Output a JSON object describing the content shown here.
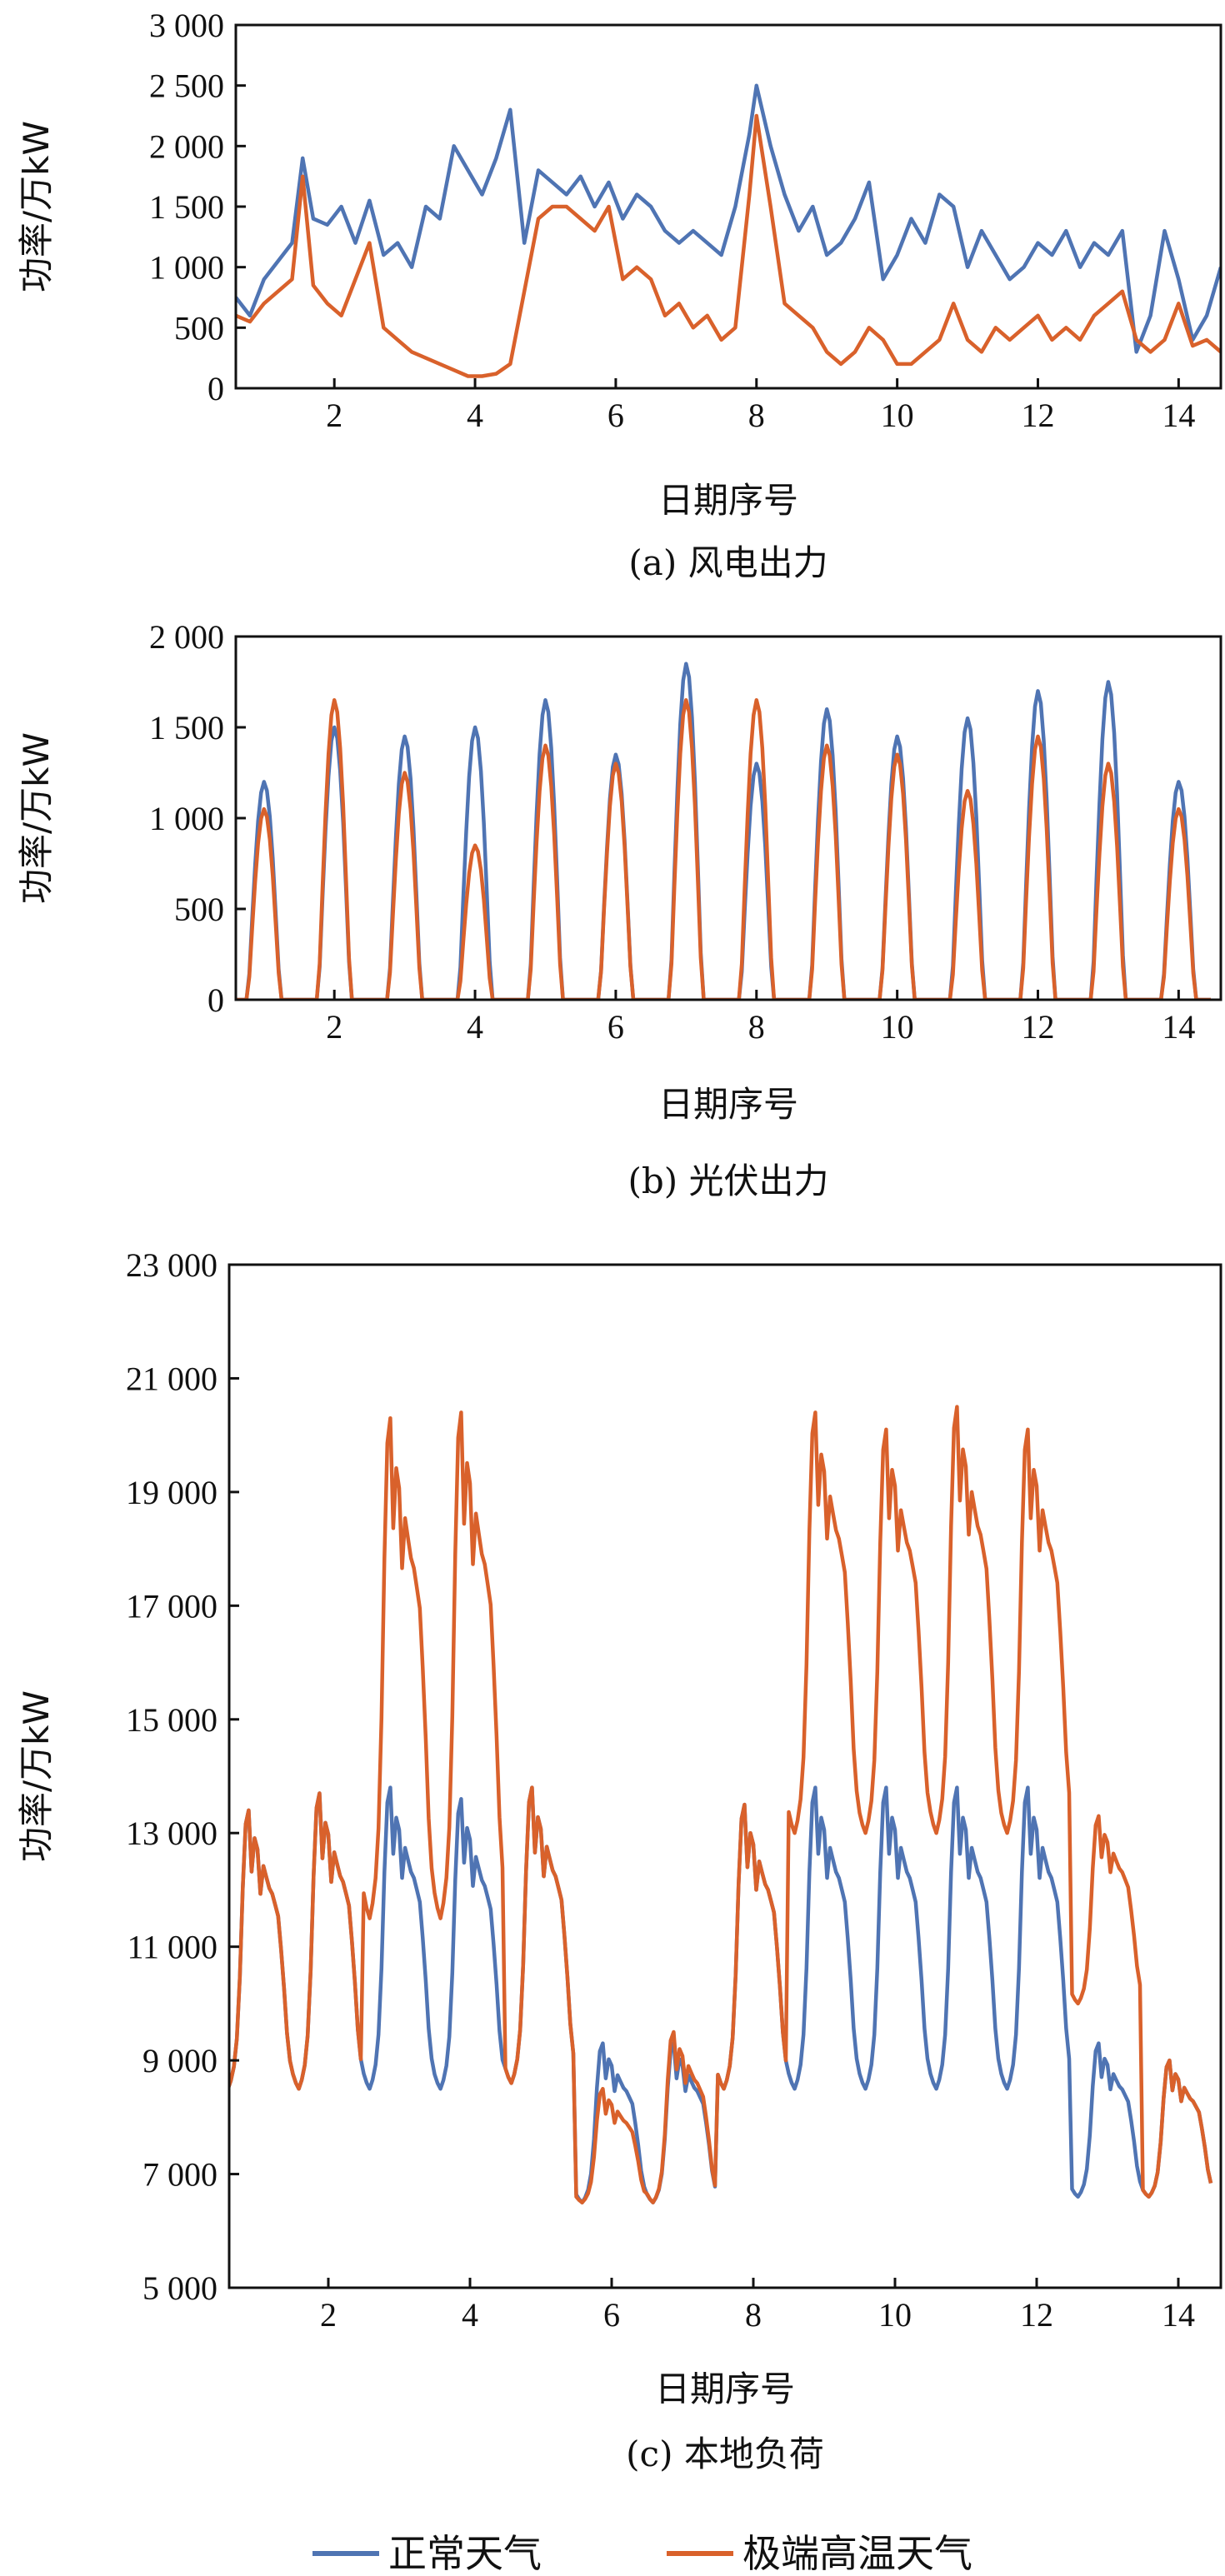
{
  "colors": {
    "normal": "#4f74b3",
    "extreme": "#d9612b",
    "axis": "#111111"
  },
  "legend": [
    {
      "label": "正常天气",
      "color": "#4f74b3"
    },
    {
      "label": "极端高温天气",
      "color": "#d9612b"
    }
  ],
  "chart_data": [
    {
      "type": "line",
      "caption": "(a) 风电出力",
      "xlabel": "日期序号",
      "ylabel": "功率/万kW",
      "xlim": [
        0.6,
        14.6
      ],
      "ylim": [
        0,
        3000
      ],
      "xticks": [
        2,
        4,
        6,
        8,
        10,
        12,
        14
      ],
      "yticks": [
        0,
        500,
        1000,
        1500,
        2000,
        2500,
        3000
      ],
      "ytick_labels": [
        "0",
        "500",
        "1 000",
        "1 500",
        "2 000",
        "2 500",
        "3 000"
      ],
      "series": [
        {
          "name": "正常天气",
          "x": [
            0.6,
            0.8,
            1.0,
            1.2,
            1.4,
            1.55,
            1.7,
            1.9,
            2.1,
            2.3,
            2.5,
            2.7,
            2.9,
            3.1,
            3.3,
            3.5,
            3.7,
            3.9,
            4.1,
            4.3,
            4.5,
            4.7,
            4.9,
            5.1,
            5.3,
            5.5,
            5.7,
            5.9,
            6.1,
            6.3,
            6.5,
            6.7,
            6.9,
            7.1,
            7.3,
            7.5,
            7.7,
            7.9,
            8.0,
            8.2,
            8.4,
            8.6,
            8.8,
            9.0,
            9.2,
            9.4,
            9.6,
            9.8,
            10.0,
            10.2,
            10.4,
            10.6,
            10.8,
            11.0,
            11.2,
            11.4,
            11.6,
            11.8,
            12.0,
            12.2,
            12.4,
            12.6,
            12.8,
            13.0,
            13.2,
            13.4,
            13.6,
            13.8,
            14.0,
            14.2,
            14.4,
            14.6
          ],
          "y": [
            750,
            600,
            900,
            1050,
            1200,
            1900,
            1400,
            1350,
            1500,
            1200,
            1550,
            1100,
            1200,
            1000,
            1500,
            1400,
            2000,
            1800,
            1600,
            1900,
            2300,
            1200,
            1800,
            1700,
            1600,
            1750,
            1500,
            1700,
            1400,
            1600,
            1500,
            1300,
            1200,
            1300,
            1200,
            1100,
            1500,
            2100,
            2500,
            2000,
            1600,
            1300,
            1500,
            1100,
            1200,
            1400,
            1700,
            900,
            1100,
            1400,
            1200,
            1600,
            1500,
            1000,
            1300,
            1100,
            900,
            1000,
            1200,
            1100,
            1300,
            1000,
            1200,
            1100,
            1300,
            300,
            600,
            1300,
            900,
            400,
            600,
            1000
          ]
        },
        {
          "name": "极端高温天气",
          "x": [
            0.6,
            0.8,
            1.0,
            1.2,
            1.4,
            1.55,
            1.7,
            1.9,
            2.1,
            2.3,
            2.5,
            2.7,
            2.9,
            3.1,
            3.3,
            3.5,
            3.7,
            3.9,
            4.1,
            4.3,
            4.5,
            4.7,
            4.9,
            5.1,
            5.3,
            5.5,
            5.7,
            5.9,
            6.1,
            6.3,
            6.5,
            6.7,
            6.9,
            7.1,
            7.3,
            7.5,
            7.7,
            7.9,
            8.0,
            8.2,
            8.4,
            8.6,
            8.8,
            9.0,
            9.2,
            9.4,
            9.6,
            9.8,
            10.0,
            10.2,
            10.4,
            10.6,
            10.8,
            11.0,
            11.2,
            11.4,
            11.6,
            11.8,
            12.0,
            12.2,
            12.4,
            12.6,
            12.8,
            13.0,
            13.2,
            13.4,
            13.6,
            13.8,
            14.0,
            14.2,
            14.4,
            14.6
          ],
          "y": [
            600,
            550,
            700,
            800,
            900,
            1750,
            850,
            700,
            600,
            900,
            1200,
            500,
            400,
            300,
            250,
            200,
            150,
            100,
            100,
            120,
            200,
            800,
            1400,
            1500,
            1500,
            1400,
            1300,
            1500,
            900,
            1000,
            900,
            600,
            700,
            500,
            600,
            400,
            500,
            1600,
            2250,
            1500,
            700,
            600,
            500,
            300,
            200,
            300,
            500,
            400,
            200,
            200,
            300,
            400,
            700,
            400,
            300,
            500,
            400,
            500,
            600,
            400,
            500,
            400,
            600,
            700,
            800,
            400,
            300,
            400,
            700,
            350,
            400,
            300
          ]
        }
      ]
    },
    {
      "type": "line",
      "caption": "(b) 光伏出力",
      "xlabel": "日期序号",
      "ylabel": "功率/万kW",
      "xlim": [
        0.6,
        14.6
      ],
      "ylim": [
        0,
        2000
      ],
      "xticks": [
        2,
        4,
        6,
        8,
        10,
        12,
        14
      ],
      "yticks": [
        0,
        500,
        1000,
        1500,
        2000
      ],
      "ytick_labels": [
        "0",
        "500",
        "1 000",
        "1 500",
        "2 000"
      ],
      "series": [
        {
          "name": "正常天气",
          "day_peaks": [
            1200,
            1500,
            1450,
            1500,
            1650,
            1350,
            1850,
            1300,
            1600,
            1450,
            1550,
            1700,
            1750,
            1200
          ]
        },
        {
          "name": "极端高温天气",
          "day_peaks": [
            1050,
            1650,
            1250,
            850,
            1400,
            1300,
            1650,
            1650,
            1400,
            1350,
            1150,
            1450,
            1300,
            1050
          ]
        }
      ]
    },
    {
      "type": "line",
      "caption": "(c) 本地负荷",
      "xlabel": "日期序号",
      "ylabel": "功率/万kW",
      "xlim": [
        0.6,
        14.6
      ],
      "ylim": [
        5000,
        23000
      ],
      "xticks": [
        2,
        4,
        6,
        8,
        10,
        12,
        14
      ],
      "yticks": [
        5000,
        7000,
        9000,
        11000,
        13000,
        15000,
        17000,
        19000,
        21000,
        23000
      ],
      "ytick_labels": [
        "5 000",
        "7 000",
        "9 000",
        "11 000",
        "13 000",
        "15 000",
        "17 000",
        "19 000",
        "21 000",
        "23 000"
      ],
      "series": [
        {
          "name": "正常天气",
          "day_peaks": [
            13400,
            13700,
            13800,
            13600,
            13800,
            9300,
            9300,
            13500,
            13800,
            13800,
            13800,
            13800,
            9300,
            9000
          ],
          "day_troughs": [
            8500,
            8500,
            8500,
            8500,
            8600,
            6500,
            6500,
            8500,
            8500,
            8500,
            8500,
            8500,
            6600,
            6600
          ]
        },
        {
          "name": "极端高温天气",
          "day_peaks": [
            13400,
            13700,
            20300,
            20400,
            13800,
            8500,
            9500,
            13500,
            20400,
            20100,
            20500,
            20100,
            13300,
            9000
          ],
          "day_troughs": [
            8500,
            8500,
            11500,
            11500,
            8600,
            6500,
            6500,
            8500,
            13000,
            13000,
            13000,
            13000,
            10000,
            6600
          ]
        }
      ]
    }
  ]
}
